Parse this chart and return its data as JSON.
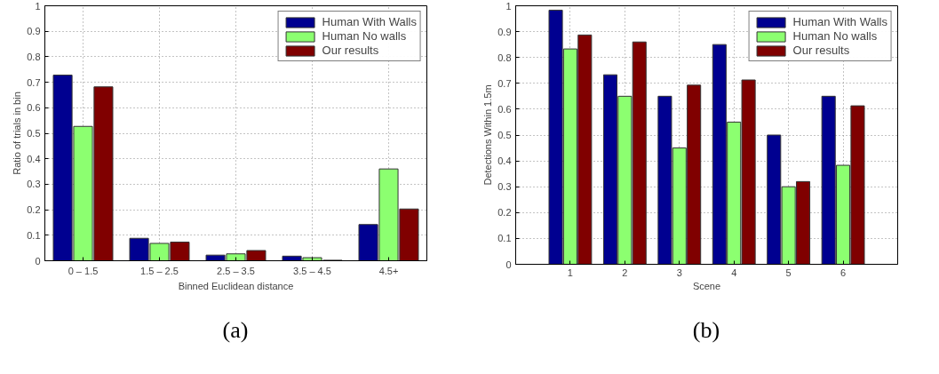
{
  "chart_data": [
    {
      "type": "bar",
      "xlabel": "Binned Euclidean distance",
      "ylabel": "Ratio of trials in bin",
      "categories": [
        "0 – 1.5",
        "1.5 – 2.5",
        "2.5 – 3.5",
        "3.5 – 4.5",
        "4.5+"
      ],
      "series": [
        {
          "name": "Human With Walls",
          "color": "#000090",
          "values": [
            0.728,
            0.088,
            0.022,
            0.018,
            0.142
          ]
        },
        {
          "name": "Human No walls",
          "color": "#8cff70",
          "values": [
            0.527,
            0.068,
            0.027,
            0.012,
            0.36
          ]
        },
        {
          "name": "Our results",
          "color": "#800000",
          "values": [
            0.682,
            0.073,
            0.04,
            0.002,
            0.203
          ]
        }
      ],
      "ylim": [
        0,
        1
      ],
      "yticks": [
        0,
        0.1,
        0.2,
        0.3,
        0.4,
        0.5,
        0.6,
        0.7,
        0.8,
        0.9,
        1
      ],
      "grid": true,
      "legend": "top right",
      "annotations": [
        "(a)"
      ]
    },
    {
      "type": "bar",
      "xlabel": "Scene",
      "ylabel": "Detections Within 1.5m",
      "x": [
        1,
        2,
        3,
        4,
        5,
        6
      ],
      "xlim": [
        0,
        7
      ],
      "xticks": [
        1,
        2,
        3,
        4,
        5,
        6
      ],
      "series": [
        {
          "name": "Human With Walls",
          "color": "#000090",
          "values": [
            0.983,
            0.733,
            0.65,
            0.85,
            0.5,
            0.65
          ]
        },
        {
          "name": "Human No walls",
          "color": "#8cff70",
          "values": [
            0.833,
            0.65,
            0.45,
            0.55,
            0.3,
            0.383
          ]
        },
        {
          "name": "Our results",
          "color": "#800000",
          "values": [
            0.887,
            0.86,
            0.693,
            0.713,
            0.32,
            0.613
          ]
        }
      ],
      "ylim": [
        0,
        1
      ],
      "yticks": [
        0,
        0.1,
        0.2,
        0.3,
        0.4,
        0.5,
        0.6,
        0.7,
        0.8,
        0.9,
        1
      ],
      "grid": true,
      "legend": "top right",
      "annotations": [
        "(b)"
      ]
    }
  ]
}
